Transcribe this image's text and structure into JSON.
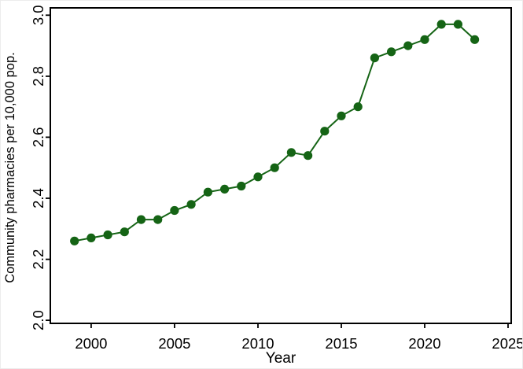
{
  "figure": {
    "background": "#ffffff",
    "border_color": "#ececec"
  },
  "chart_data": {
    "type": "line",
    "title": "",
    "xlabel": "Year",
    "ylabel": "Community pharmacies per 10,000 pop.",
    "x": [
      1999,
      2000,
      2001,
      2002,
      2003,
      2004,
      2005,
      2006,
      2007,
      2008,
      2009,
      2010,
      2011,
      2012,
      2013,
      2014,
      2015,
      2016,
      2017,
      2018,
      2019,
      2020,
      2021,
      2022,
      2023
    ],
    "series": [
      {
        "name": "Community pharmacies per 10,000 pop.",
        "values": [
          2.26,
          2.27,
          2.28,
          2.29,
          2.33,
          2.33,
          2.36,
          2.38,
          2.42,
          2.43,
          2.44,
          2.47,
          2.5,
          2.55,
          2.54,
          2.62,
          2.67,
          2.7,
          2.86,
          2.88,
          2.9,
          2.92,
          2.97,
          2.97,
          2.92
        ]
      }
    ],
    "xlim": [
      1997.55,
      2025.19
    ],
    "ylim": [
      1.99,
      3.024
    ],
    "xticks": [
      2000,
      2005,
      2010,
      2015,
      2020,
      2025
    ],
    "xtick_labels": [
      "2000",
      "2005",
      "2010",
      "2015",
      "2020",
      "2025"
    ],
    "yticks": [
      2.0,
      2.2,
      2.4,
      2.6,
      2.8,
      3.0
    ],
    "ytick_labels": [
      "2.0",
      "2.2",
      "2.4",
      "2.6",
      "2.8",
      "3.0"
    ],
    "grid": false,
    "legend": "none",
    "line_color": "#156415",
    "marker_color": "#156415",
    "axis_color": "#000000"
  }
}
